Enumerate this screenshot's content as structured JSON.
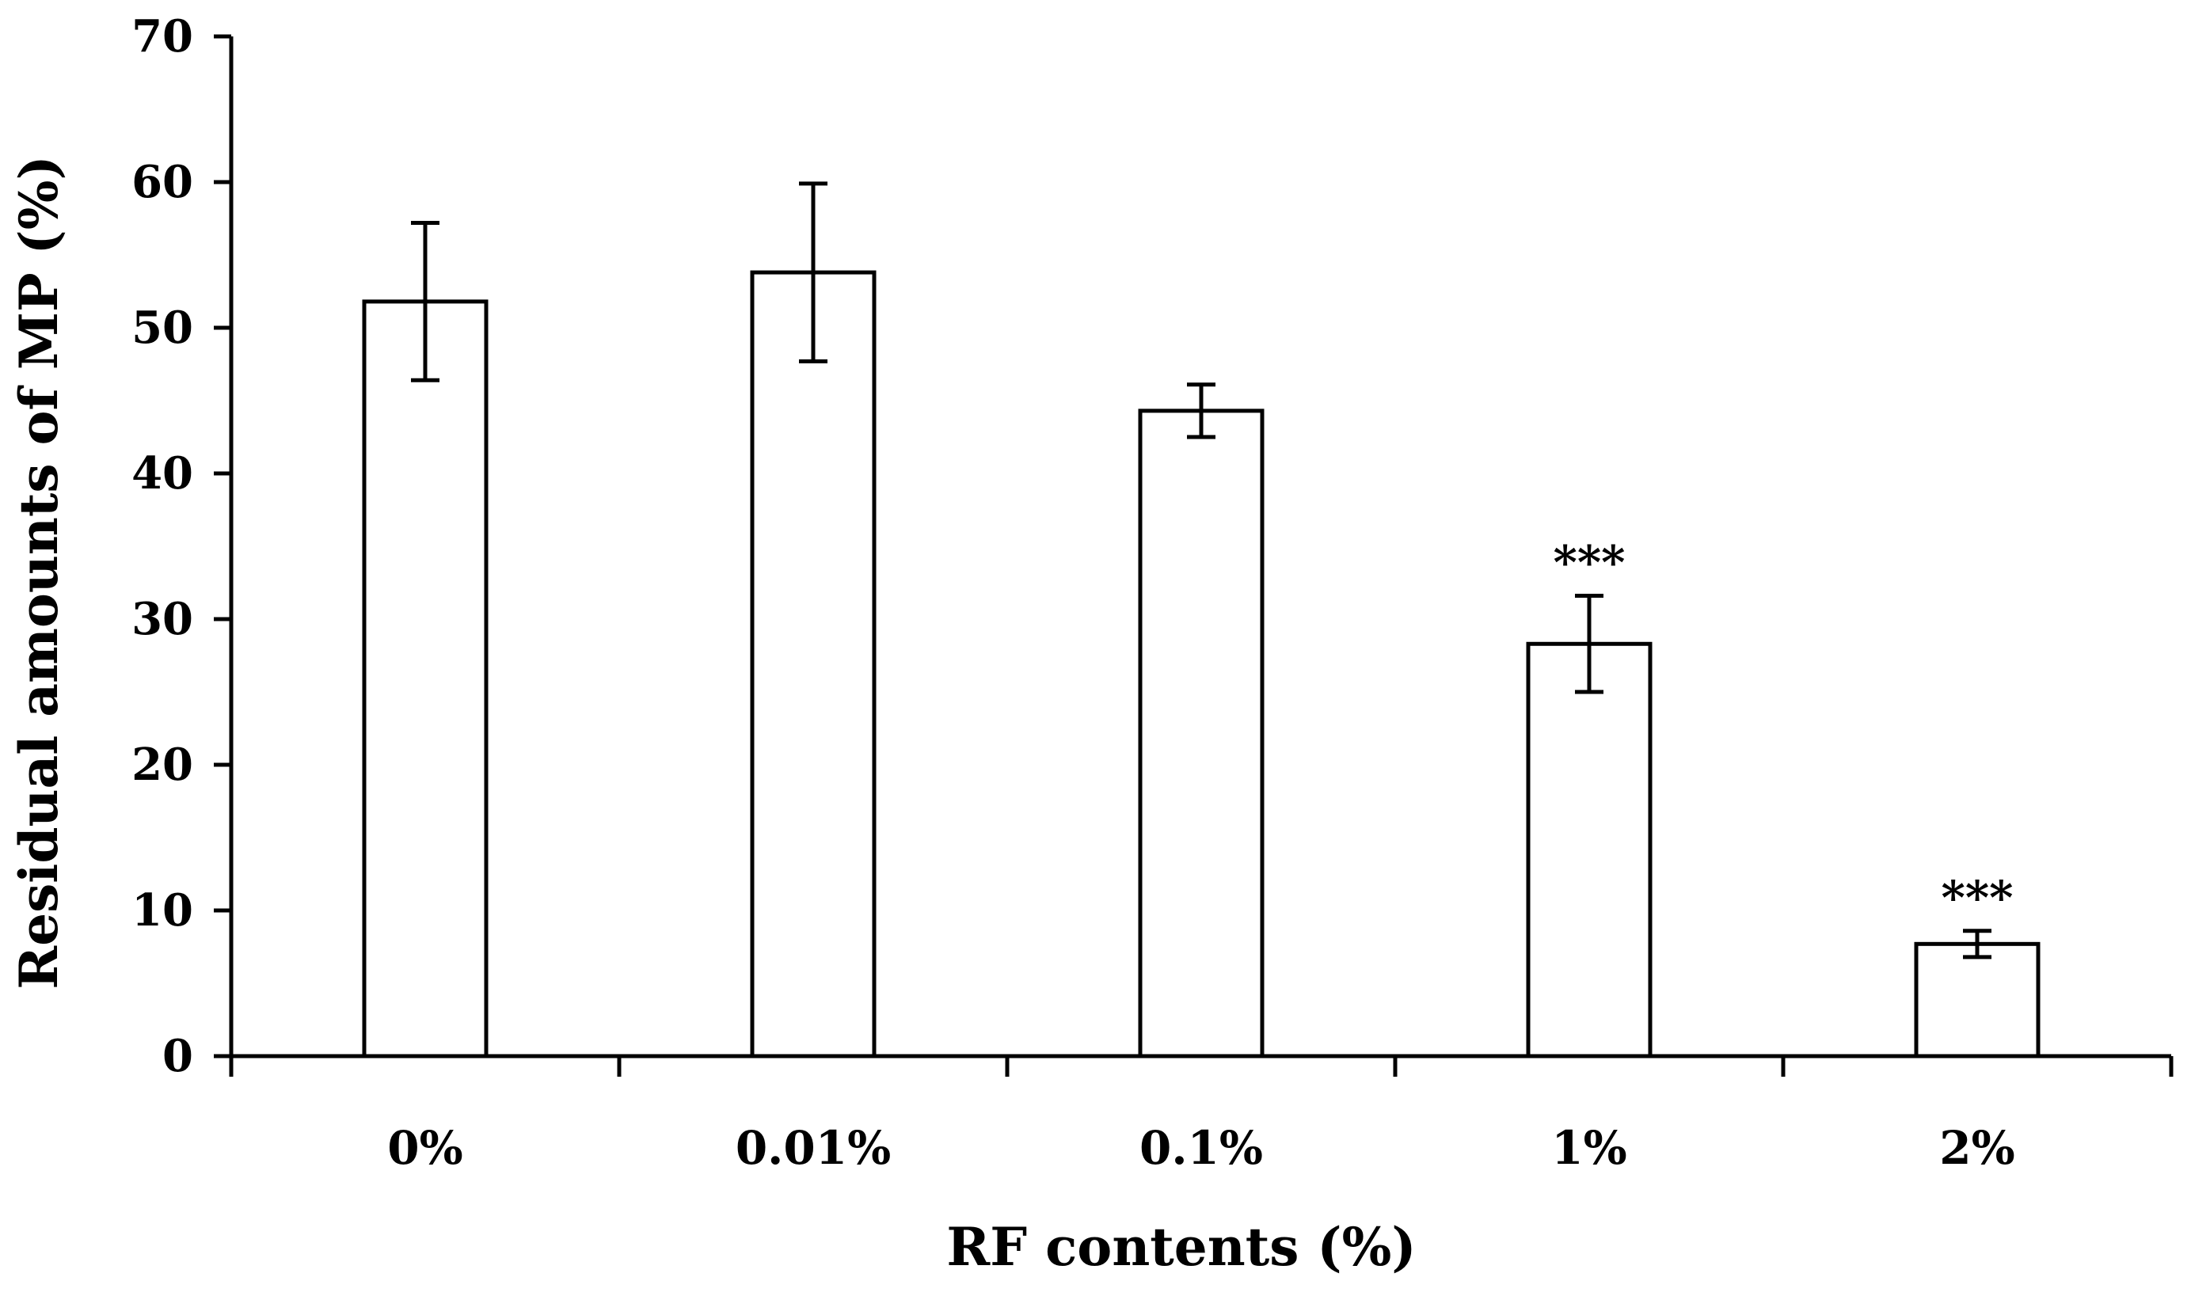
{
  "chart_data": {
    "type": "bar",
    "title": "",
    "xlabel": "RF contents (%)",
    "ylabel": "Residual amounts of MP (%)",
    "categories": [
      "0%",
      "0.01%",
      "0.1%",
      "1%",
      "2%"
    ],
    "values": [
      51.8,
      53.8,
      44.3,
      28.3,
      7.7
    ],
    "errors": [
      5.4,
      6.1,
      1.8,
      3.3,
      0.9
    ],
    "annotations": [
      "",
      "",
      "",
      "***",
      "***"
    ],
    "ylim": [
      0,
      70
    ],
    "yticks": [
      0,
      10,
      20,
      30,
      40,
      50,
      60,
      70
    ],
    "grid": false,
    "legend": "none",
    "colors": {
      "bar_fill": "#ffffff",
      "bar_stroke": "#000000",
      "axis": "#000000"
    }
  }
}
